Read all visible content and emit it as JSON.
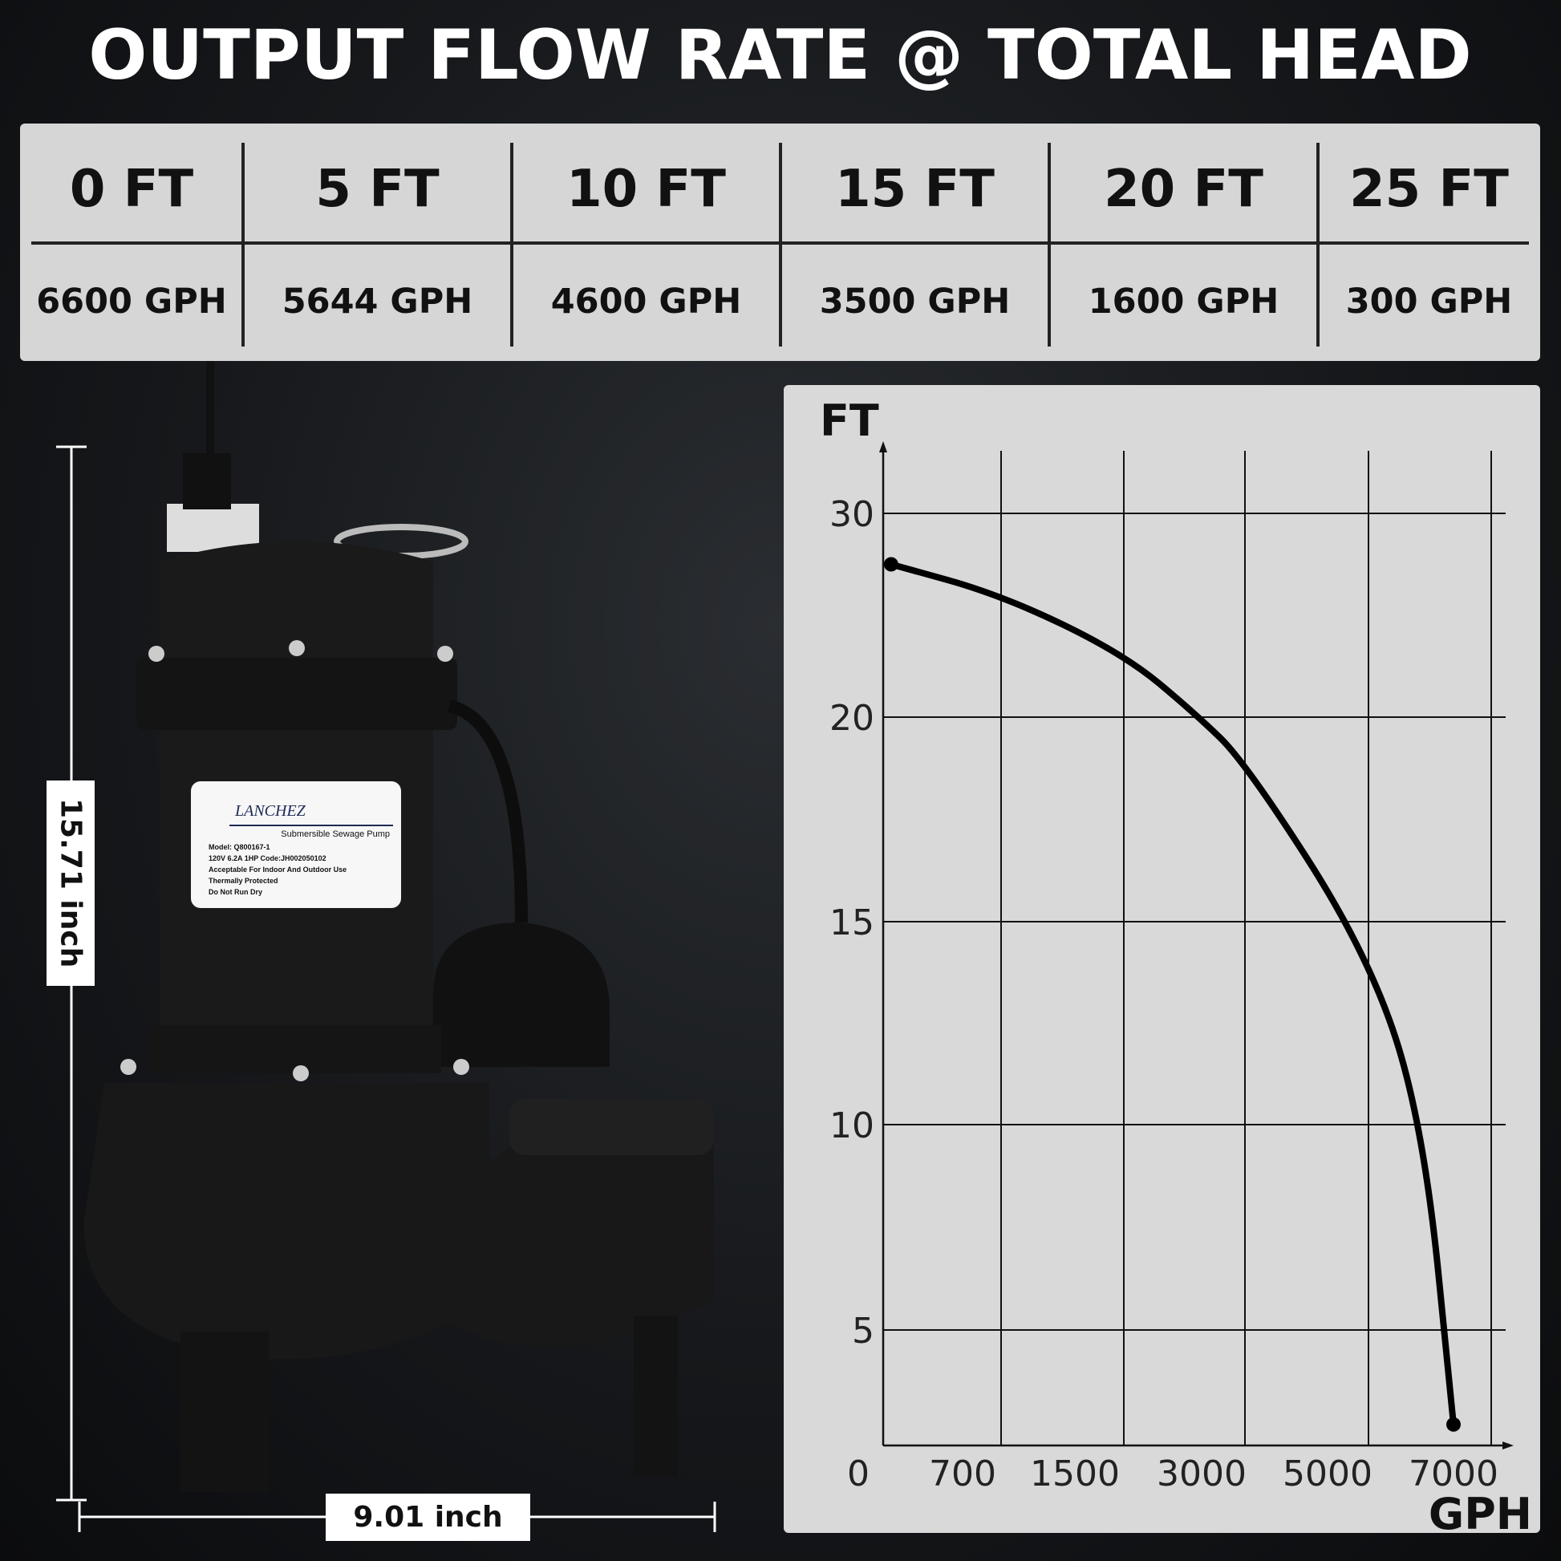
{
  "title": "OUTPUT FLOW RATE @ TOTAL HEAD",
  "table": {
    "headers": [
      "0 FT",
      "5 FT",
      "10 FT",
      "15 FT",
      "20 FT",
      "25 FT"
    ],
    "values": [
      "6600 GPH",
      "5644 GPH",
      "4600 GPH",
      "3500 GPH",
      "1600 GPH",
      "300 GPH"
    ]
  },
  "dimensions": {
    "height": "15.71 inch",
    "width": "9.01 inch"
  },
  "product_label": {
    "brand": "LANCHEZ",
    "product": "Submersible Sewage Pump",
    "lines": [
      "Model: Q800167-1",
      "120V  6.2A  1HP  Code:JH002050102",
      "Acceptable For Indoor And Outdoor Use",
      "Thermally Protected",
      "Do Not Run Dry"
    ]
  },
  "chart_data": {
    "type": "line",
    "xlabel": "GPH",
    "ylabel": "FT",
    "x_ticks": [
      "0",
      "700",
      "1500",
      "3000",
      "5000",
      "7000"
    ],
    "y_ticks": [
      "5",
      "10",
      "15",
      "20",
      "30"
    ],
    "grid": true,
    "series": [
      {
        "x": [
          220,
          976,
          2079,
          2917,
          3693,
          5651,
          6524,
          7000
        ],
        "y": [
          27.5,
          26.0,
          23.1,
          20.2,
          18.9,
          14.2,
          10.0,
          2.7
        ]
      }
    ],
    "line_color": "#000000"
  }
}
